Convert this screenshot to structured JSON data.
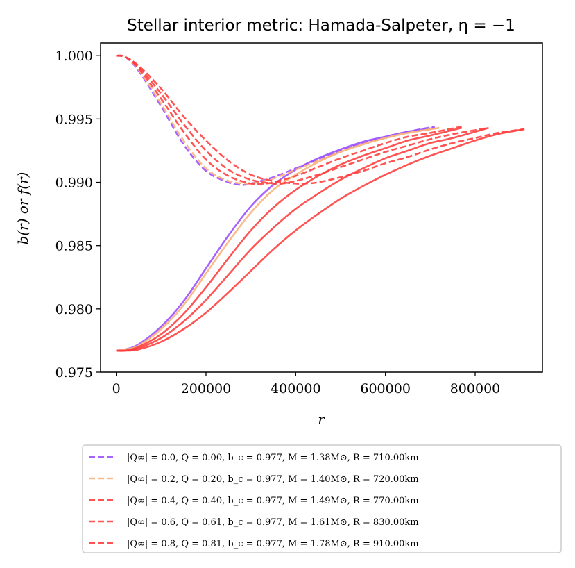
{
  "chart_data": {
    "type": "line",
    "title": "Stellar interior metric: Hamada-Salpeter, η = −1",
    "xlabel": "r",
    "ylabel": "b(r) or f(r)",
    "xlim": [
      -35000,
      950000
    ],
    "ylim": [
      0.975,
      1.001
    ],
    "xticks": [
      0,
      200000,
      400000,
      600000,
      800000
    ],
    "xtick_labels": [
      "0",
      "200000",
      "400000",
      "600000",
      "800000"
    ],
    "yticks": [
      0.975,
      0.98,
      0.985,
      0.99,
      0.995,
      1.0
    ],
    "ytick_labels": [
      "0.975",
      "0.980",
      "0.985",
      "0.990",
      "0.995",
      "1.000"
    ],
    "grid": false,
    "legend_placement": "below",
    "note_linestyles": "solid lines = b(r), dashed lines = f(r)",
    "series": [
      {
        "name": "|Q∞| = 0.0, Q = 0.00, b_c = 0.977, M = 1.38M⊙, R = 710.00km",
        "color": "#9b4dff",
        "R": 710000,
        "b": {
          "x": [
            0,
            20000,
            50000,
            100000,
            150000,
            200000,
            250000,
            300000,
            350000,
            400000,
            450000,
            500000,
            550000,
            600000,
            650000,
            710000
          ],
          "y": [
            0.9767,
            0.9768,
            0.9772,
            0.9786,
            0.9806,
            0.9832,
            0.9858,
            0.9881,
            0.9898,
            0.991,
            0.9919,
            0.9926,
            0.9932,
            0.9936,
            0.994,
            0.9943
          ]
        },
        "f": {
          "x": [
            0,
            20000,
            50000,
            100000,
            150000,
            200000,
            250000,
            280000,
            300000,
            350000,
            400000,
            450000,
            500000,
            550000,
            600000,
            650000,
            710000
          ],
          "y": [
            1.0,
            0.9999,
            0.9988,
            0.996,
            0.993,
            0.9909,
            0.99,
            0.9898,
            0.9899,
            0.9904,
            0.9911,
            0.9918,
            0.9925,
            0.9931,
            0.9936,
            0.994,
            0.9944
          ]
        }
      },
      {
        "name": "|Q∞| = 0.2, Q = 0.20, b_c = 0.977, M = 1.40M⊙, R = 720.00km",
        "color": "#f9b27a",
        "R": 720000,
        "b": {
          "x": [
            0,
            20000,
            50000,
            100000,
            150000,
            200000,
            250000,
            300000,
            350000,
            400000,
            450000,
            500000,
            550000,
            600000,
            650000,
            720000
          ],
          "y": [
            0.9767,
            0.9768,
            0.9771,
            0.9784,
            0.9803,
            0.9828,
            0.9853,
            0.9876,
            0.9894,
            0.9906,
            0.9916,
            0.9924,
            0.993,
            0.9935,
            0.9939,
            0.9943
          ]
        },
        "f": {
          "x": [
            0,
            20000,
            50000,
            100000,
            150000,
            200000,
            250000,
            290000,
            300000,
            350000,
            400000,
            450000,
            500000,
            550000,
            600000,
            650000,
            720000
          ],
          "y": [
            1.0,
            0.9999,
            0.9989,
            0.9962,
            0.9933,
            0.9911,
            0.9901,
            0.9899,
            0.9899,
            0.9903,
            0.991,
            0.9917,
            0.9924,
            0.993,
            0.9935,
            0.9939,
            0.9943
          ]
        }
      },
      {
        "name": "|Q∞| = 0.4, Q = 0.40, b_c = 0.977, M = 1.49M⊙, R = 770.00km",
        "color": "#ff3c3c",
        "R": 770000,
        "b": {
          "x": [
            0,
            20000,
            50000,
            100000,
            150000,
            200000,
            250000,
            300000,
            350000,
            400000,
            450000,
            500000,
            550000,
            600000,
            650000,
            700000,
            770000
          ],
          "y": [
            0.9767,
            0.9767,
            0.977,
            0.978,
            0.9796,
            0.9817,
            0.984,
            0.9862,
            0.988,
            0.9894,
            0.9905,
            0.9914,
            0.9921,
            0.9927,
            0.9933,
            0.9937,
            0.9943
          ]
        },
        "f": {
          "x": [
            0,
            20000,
            50000,
            100000,
            150000,
            200000,
            250000,
            300000,
            330000,
            350000,
            400000,
            450000,
            500000,
            550000,
            600000,
            650000,
            700000,
            770000
          ],
          "y": [
            1.0,
            0.9999,
            0.999,
            0.9966,
            0.994,
            0.9918,
            0.9905,
            0.9899,
            0.9899,
            0.99,
            0.9905,
            0.9912,
            0.9919,
            0.9925,
            0.9931,
            0.9936,
            0.9939,
            0.9944
          ]
        }
      },
      {
        "name": "|Q∞| = 0.6, Q = 0.61, b_c = 0.977, M = 1.61M⊙, R = 830.00km",
        "color": "#ff3c3c",
        "R": 830000,
        "b": {
          "x": [
            0,
            20000,
            50000,
            100000,
            150000,
            200000,
            250000,
            300000,
            350000,
            400000,
            450000,
            500000,
            550000,
            600000,
            650000,
            700000,
            750000,
            830000
          ],
          "y": [
            0.9767,
            0.9767,
            0.9769,
            0.9777,
            0.979,
            0.9807,
            0.9827,
            0.9847,
            0.9864,
            0.9879,
            0.9891,
            0.9902,
            0.9911,
            0.9919,
            0.9925,
            0.9931,
            0.9935,
            0.9943
          ]
        },
        "f": {
          "x": [
            0,
            20000,
            50000,
            100000,
            150000,
            200000,
            250000,
            300000,
            350000,
            370000,
            400000,
            450000,
            500000,
            550000,
            600000,
            650000,
            700000,
            750000,
            830000
          ],
          "y": [
            1.0,
            0.9999,
            0.9991,
            0.997,
            0.9946,
            0.9925,
            0.991,
            0.9902,
            0.9899,
            0.9899,
            0.9901,
            0.9906,
            0.9912,
            0.9918,
            0.9924,
            0.9929,
            0.9934,
            0.9938,
            0.9943
          ]
        }
      },
      {
        "name": "|Q∞| = 0.8, Q = 0.81, b_c = 0.977, M = 1.78M⊙, R = 910.00km",
        "color": "#ff3c3c",
        "R": 910000,
        "b": {
          "x": [
            0,
            20000,
            50000,
            100000,
            150000,
            200000,
            250000,
            300000,
            350000,
            400000,
            450000,
            500000,
            550000,
            600000,
            650000,
            700000,
            750000,
            800000,
            850000,
            910000
          ],
          "y": [
            0.9767,
            0.9767,
            0.9768,
            0.9774,
            0.9784,
            0.9797,
            0.9813,
            0.983,
            0.9847,
            0.9862,
            0.9875,
            0.9887,
            0.9897,
            0.9906,
            0.9914,
            0.9921,
            0.9927,
            0.9933,
            0.9938,
            0.9942
          ]
        },
        "f": {
          "x": [
            0,
            20000,
            50000,
            100000,
            150000,
            200000,
            250000,
            300000,
            350000,
            400000,
            420000,
            450000,
            500000,
            550000,
            600000,
            650000,
            700000,
            750000,
            800000,
            850000,
            910000
          ],
          "y": [
            1.0,
            0.9999,
            0.9992,
            0.9974,
            0.9952,
            0.9933,
            0.9917,
            0.9906,
            0.9901,
            0.9899,
            0.9899,
            0.99,
            0.9904,
            0.9909,
            0.9915,
            0.992,
            0.9926,
            0.9931,
            0.9935,
            0.9939,
            0.9942
          ]
        }
      }
    ]
  }
}
